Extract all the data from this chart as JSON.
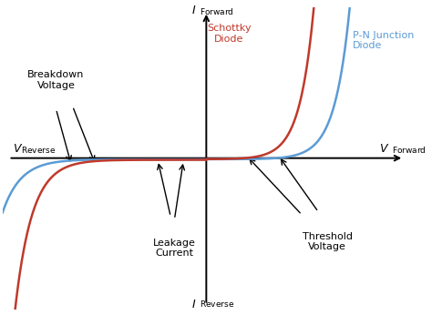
{
  "background_color": "#ffffff",
  "schottky_color": "#c0392b",
  "pn_color": "#5b9bd5",
  "axis_color": "#000000",
  "text_color": "#000000",
  "annotation_color": "#000000",
  "schottky_threshold_fwd": 0.3,
  "pn_threshold_fwd": 0.55,
  "schottky_breakdown": -0.85,
  "pn_breakdown": -1.05,
  "xlim": [
    -1.6,
    1.6
  ],
  "ylim": [
    -1.6,
    1.6
  ],
  "figsize": [
    4.74,
    3.46
  ],
  "dpi": 100,
  "labels": {
    "i_forward_main": "I",
    "i_forward_sub": "Forward",
    "i_reverse_main": "I",
    "i_reverse_sub": "Reverse",
    "v_forward_main": "V",
    "v_forward_sub": "Forward",
    "v_reverse_main": "V",
    "v_reverse_sub": "Reverse",
    "schottky": "Schottky\nDiode",
    "pn_junction": "P-N Junction\nDiode",
    "breakdown": "Breakdown\nVoltage",
    "leakage": "Leakage\nCurrent",
    "threshold": "Threshold\nVoltage"
  }
}
